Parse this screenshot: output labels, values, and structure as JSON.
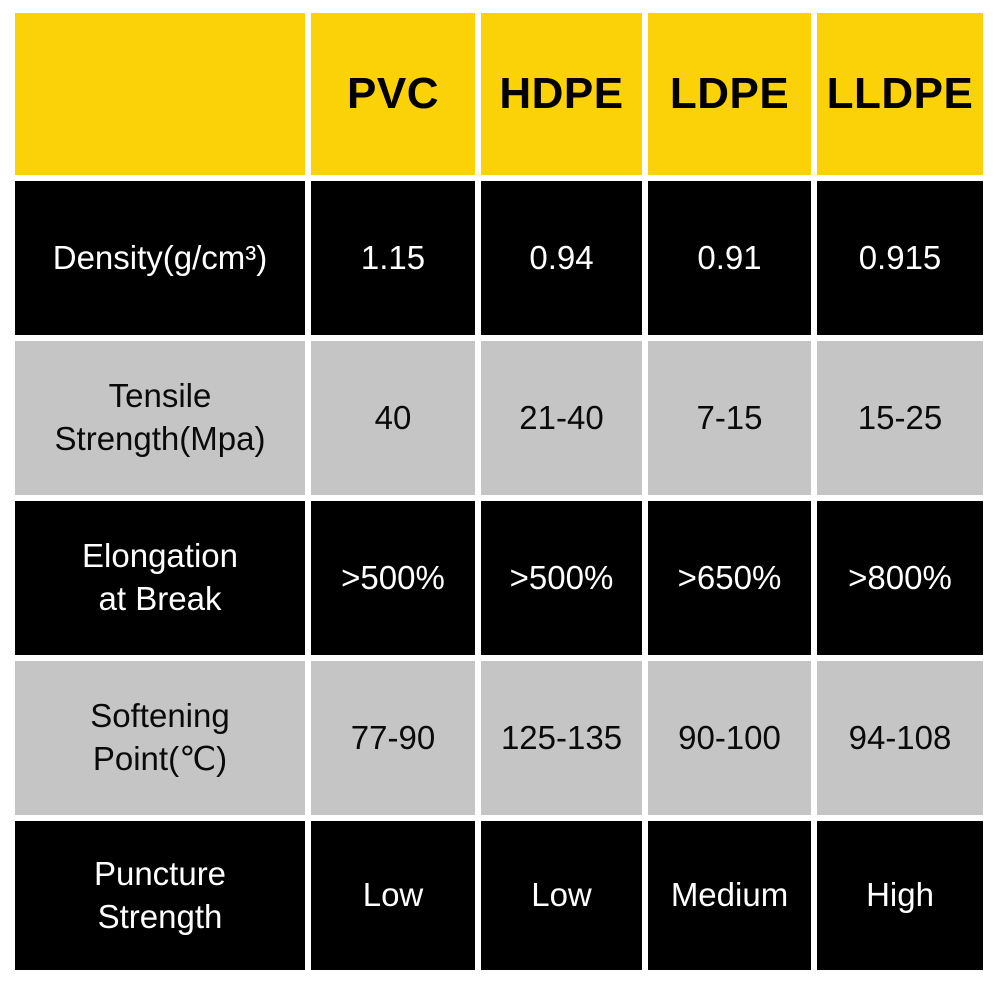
{
  "colors": {
    "page_bg": "#FFFFFF",
    "header_bg": "#FBD107",
    "header_text": "#000000",
    "black_row_bg": "#000000",
    "black_row_text": "#FFFFFF",
    "gray_row_bg": "#C5C5C5",
    "gray_row_text": "#0A0A0A"
  },
  "table": {
    "corner_label": "",
    "columns": [
      "PVC",
      "HDPE",
      "LDPE",
      "LLDPE"
    ],
    "rows": [
      {
        "label": "Density(g/cm³)",
        "values": [
          "1.15",
          "0.94",
          "0.91",
          "0.915"
        ]
      },
      {
        "label": "Tensile\nStrength(Mpa)",
        "values": [
          "40",
          "21-40",
          "7-15",
          "15-25"
        ]
      },
      {
        "label": "Elongation\nat Break",
        "values": [
          ">500%",
          ">500%",
          ">650%",
          ">800%"
        ]
      },
      {
        "label": "Softening\nPoint(℃)",
        "values": [
          "77-90",
          "125-135",
          "90-100",
          "94-108"
        ]
      },
      {
        "label": "Puncture\nStrength",
        "values": [
          "Low",
          "Low",
          "Medium",
          "High"
        ]
      }
    ]
  },
  "chart_data": {
    "type": "table",
    "title": "",
    "columns": [
      "",
      "PVC",
      "HDPE",
      "LDPE",
      "LLDPE"
    ],
    "rows": [
      [
        "Density(g/cm³)",
        "1.15",
        "0.94",
        "0.91",
        "0.915"
      ],
      [
        "Tensile Strength(Mpa)",
        "40",
        "21-40",
        "7-15",
        "15-25"
      ],
      [
        "Elongation at Break",
        ">500%",
        ">500%",
        ">650%",
        ">800%"
      ],
      [
        "Softening Point(℃)",
        "77-90",
        "125-135",
        "90-100",
        "94-108"
      ],
      [
        "Puncture Strength",
        "Low",
        "Low",
        "Medium",
        "High"
      ]
    ]
  }
}
